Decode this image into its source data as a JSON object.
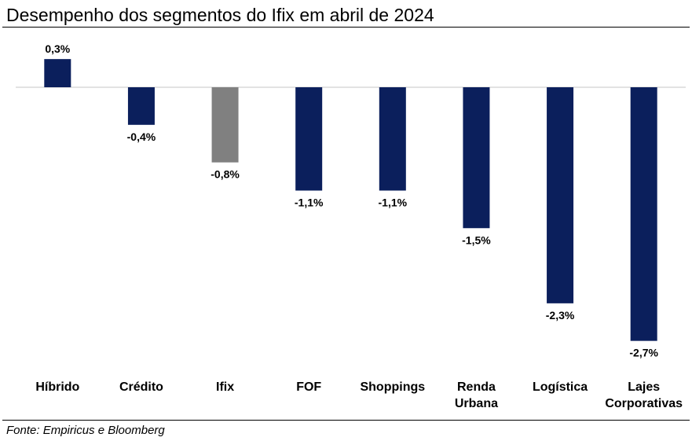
{
  "title": "Desempenho dos segmentos do Ifix em abril de 2024",
  "source": "Fonte: Empiricus e Bloomberg",
  "colors": {
    "bar": "#0b1f5c",
    "highlight": "#808080",
    "axis": "#d9d9d9"
  },
  "chart_data": {
    "type": "bar",
    "title": "Desempenho dos segmentos do Ifix em abril de 2024",
    "xlabel": "",
    "ylabel": "",
    "grid": false,
    "legend": "none",
    "unit": "%",
    "categories": [
      [
        "Híbrido"
      ],
      [
        "Crédito"
      ],
      [
        "Ifix"
      ],
      [
        "FOF"
      ],
      [
        "Shoppings"
      ],
      [
        "Renda",
        "Urbana"
      ],
      [
        "Logística"
      ],
      [
        "Lajes",
        "Corporativas"
      ]
    ],
    "values": [
      0.3,
      -0.4,
      -0.8,
      -1.1,
      -1.1,
      -1.5,
      -2.3,
      -2.7
    ],
    "value_labels": [
      "0,3%",
      "-0,4%",
      "-0,8%",
      "-1,1%",
      "-1,1%",
      "-1,5%",
      "-2,3%",
      "-2,7%"
    ],
    "highlight_category": "Ifix"
  }
}
